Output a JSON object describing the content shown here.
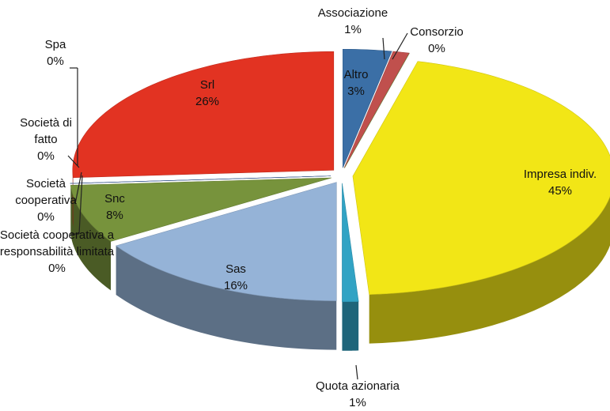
{
  "chart_data": {
    "type": "pie",
    "categories": [
      "Altro",
      "Associazione",
      "Consorzio",
      "Impresa indiv.",
      "Quota azionaria",
      "Sas",
      "Snc",
      "Società cooperativa a responsabilità limitata",
      "Società cooperativa",
      "Società di fatto",
      "Spa",
      "Srl"
    ],
    "values": [
      3,
      1,
      0,
      45,
      1,
      16,
      8,
      0,
      0,
      0,
      0,
      26
    ],
    "value_labels": [
      "3%",
      "1%",
      "0%",
      "45%",
      "1%",
      "16%",
      "8%",
      "0%",
      "0%",
      "0%",
      "0%",
      "26%"
    ],
    "colors": [
      "#3b6fa6",
      "#c0504d",
      "#77933c",
      "#f2e616",
      "#31a3c4",
      "#95b3d7",
      "#77933c",
      "#8064a2",
      "#c0504d",
      "#4f81bd",
      "#4a7ebb",
      "#e23322"
    ]
  }
}
